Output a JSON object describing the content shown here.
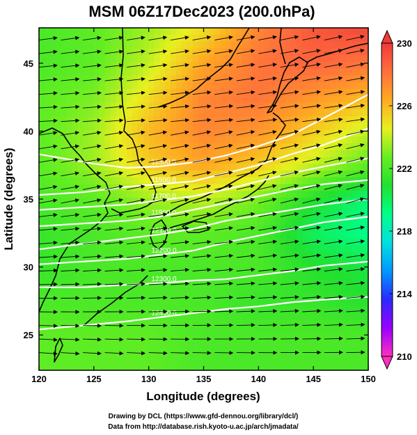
{
  "chart_data": {
    "type": "heatmap",
    "title": "MSM 06Z17Dec2023 (200.0hPa)",
    "xlabel": "Longitude (degrees)",
    "ylabel": "Latitude  (degrees)",
    "xlim": [
      120,
      150
    ],
    "ylim": [
      22.4,
      47.6
    ],
    "x_ticks": [
      {
        "value": 120,
        "label": "120"
      },
      {
        "value": 125,
        "label": "125"
      },
      {
        "value": 130,
        "label": "130"
      },
      {
        "value": 135,
        "label": "135"
      },
      {
        "value": 140,
        "label": "140"
      },
      {
        "value": 145,
        "label": "145"
      },
      {
        "value": 150,
        "label": "150"
      }
    ],
    "y_ticks": [
      {
        "value": 25,
        "label": "25"
      },
      {
        "value": 30,
        "label": "30"
      },
      {
        "value": 35,
        "label": "35"
      },
      {
        "value": 40,
        "label": "40"
      },
      {
        "value": 45,
        "label": "45"
      }
    ],
    "colorbar": {
      "min": 210,
      "max": 230,
      "ticks": [
        {
          "value": 230,
          "label": "230"
        },
        {
          "value": 226,
          "label": "226"
        },
        {
          "value": 222,
          "label": "222"
        },
        {
          "value": 218,
          "label": "218"
        },
        {
          "value": 214,
          "label": "214"
        },
        {
          "value": 210,
          "label": "210"
        }
      ],
      "colors": [
        "#ff2fc0",
        "#9900ff",
        "#2a2aff",
        "#0099ff",
        "#00e0e0",
        "#00ff88",
        "#22e030",
        "#66ee22",
        "#e8f020",
        "#ffaa22",
        "#ff6f3c",
        "#f03a3a"
      ]
    },
    "temperature_field": {
      "lons": [
        120,
        125,
        130,
        135,
        140,
        145,
        150
      ],
      "lats": [
        47.5,
        45,
        42.5,
        40,
        37.5,
        35,
        32.5,
        30,
        27.5,
        25,
        22.5
      ],
      "values": [
        [
          222,
          222.5,
          223.5,
          225,
          227.5,
          229,
          229.5
        ],
        [
          222,
          222.5,
          224,
          226.5,
          228,
          228.5,
          228
        ],
        [
          222.5,
          223,
          225,
          227.5,
          228,
          227,
          226
        ],
        [
          222.5,
          223.5,
          226,
          227.5,
          227,
          225.5,
          224
        ],
        [
          222.5,
          223.5,
          225.5,
          226.5,
          225.5,
          224,
          222.5
        ],
        [
          222,
          222.5,
          223.5,
          224,
          223,
          221,
          219.5
        ],
        [
          221.5,
          222,
          222.5,
          222.5,
          222,
          220,
          219
        ],
        [
          221.5,
          222,
          222,
          222,
          222,
          221,
          220.5
        ],
        [
          222,
          222,
          222,
          222,
          221.5,
          221.5,
          221
        ],
        [
          222.5,
          222.5,
          222.5,
          222,
          222,
          222,
          222
        ],
        [
          222.5,
          222.5,
          222.5,
          222,
          222,
          222,
          222
        ]
      ]
    },
    "wind_field": {
      "lons": [
        120,
        122,
        124,
        126,
        128,
        130,
        132,
        134,
        136,
        138,
        140,
        142,
        144,
        146,
        148,
        150
      ],
      "lats": [
        46.7,
        45.7,
        44.7,
        43.7,
        42.7,
        41.7,
        40.7,
        39.7,
        38.7,
        37.7,
        36.7,
        35.7,
        34.7,
        33.7,
        32.7,
        31.7,
        30.7,
        29.7,
        28.7,
        27.7,
        26.7,
        25.7,
        24.7,
        23.7
      ],
      "description_direction": "mostly westerly, turning from WNW in the north to WSW/W in the south"
    },
    "contours": {
      "series": [
        {
          "label": "11300.0",
          "level": 11300,
          "points": [
            [
              120,
              38.3
            ],
            [
              125,
              37.6
            ],
            [
              128,
              37.3
            ],
            [
              131,
              37.4
            ],
            [
              134,
              37.7
            ],
            [
              137,
              38.2
            ],
            [
              140,
              38.9
            ],
            [
              143,
              39.7
            ],
            [
              147,
              41.4
            ],
            [
              150,
              42.7
            ]
          ]
        },
        {
          "label": "11500.0",
          "level": 11500,
          "points": [
            [
              120,
              35.3
            ],
            [
              124,
              35.5
            ],
            [
              128,
              35.9
            ],
            [
              131,
              36.1
            ],
            [
              134,
              36.3
            ],
            [
              137,
              36.9
            ],
            [
              140,
              37.5
            ],
            [
              143,
              38.3
            ],
            [
              146,
              39.0
            ],
            [
              150,
              40.2
            ]
          ]
        },
        {
          "label": "11700.0",
          "level": 11700,
          "points": [
            [
              120,
              34.2
            ],
            [
              124,
              34.4
            ],
            [
              128,
              34.6
            ],
            [
              131,
              34.9
            ],
            [
              134,
              35.2
            ],
            [
              137,
              35.7
            ],
            [
              140,
              36.3
            ],
            [
              143,
              36.9
            ],
            [
              146,
              37.4
            ],
            [
              150,
              38.0
            ]
          ]
        },
        {
          "label": "11900.0",
          "level": 11900,
          "points": [
            [
              120,
              33.0
            ],
            [
              124,
              33.2
            ],
            [
              128,
              33.4
            ],
            [
              131,
              33.7
            ],
            [
              134,
              34.2
            ],
            [
              137,
              34.7
            ],
            [
              140,
              35.2
            ],
            [
              143,
              35.7
            ],
            [
              146,
              36.1
            ],
            [
              150,
              36.4
            ]
          ]
        },
        {
          "label": "12100.0",
          "level": 12100,
          "points": [
            [
              120,
              31.3
            ],
            [
              124,
              31.7
            ],
            [
              128,
              32.1
            ],
            [
              131,
              32.4
            ],
            [
              134,
              32.8
            ],
            [
              137,
              33.4
            ],
            [
              140,
              33.8
            ],
            [
              143,
              34.2
            ],
            [
              146,
              34.6
            ],
            [
              150,
              35.0
            ]
          ]
        },
        {
          "label": "12200.0",
          "level": 12200,
          "points": [
            [
              120,
              30.2
            ],
            [
              124,
              30.4
            ],
            [
              128,
              30.6
            ],
            [
              131,
              30.9
            ],
            [
              134,
              31.2
            ],
            [
              137,
              31.8
            ],
            [
              140,
              32.3
            ],
            [
              143,
              32.8
            ],
            [
              146,
              33.3
            ],
            [
              150,
              33.7
            ]
          ]
        },
        {
          "label": "12300.0",
          "level": 12300,
          "points": [
            [
              120,
              28.5
            ],
            [
              124,
              28.5
            ],
            [
              128,
              28.7
            ],
            [
              131,
              28.8
            ],
            [
              134,
              29.0
            ],
            [
              137,
              29.1
            ],
            [
              140,
              29.4
            ],
            [
              143,
              29.7
            ],
            [
              146,
              30.1
            ],
            [
              150,
              30.4
            ]
          ]
        },
        {
          "label": "12400.0",
          "level": 12400,
          "points": [
            [
              120,
              25.4
            ],
            [
              124,
              25.7
            ],
            [
              128,
              26.0
            ],
            [
              131,
              26.3
            ],
            [
              134,
              26.6
            ],
            [
              137,
              26.9
            ],
            [
              140,
              27.1
            ],
            [
              143,
              27.4
            ],
            [
              146,
              27.6
            ],
            [
              150,
              27.8
            ]
          ]
        }
      ]
    }
  },
  "credits": {
    "line1": "Drawing by DCL (https://www.gfd-dennou.org/library/dcl/)",
    "line2": "Data from http://database.rish.kyoto-u.ac.jp/arch/jmadata/"
  }
}
